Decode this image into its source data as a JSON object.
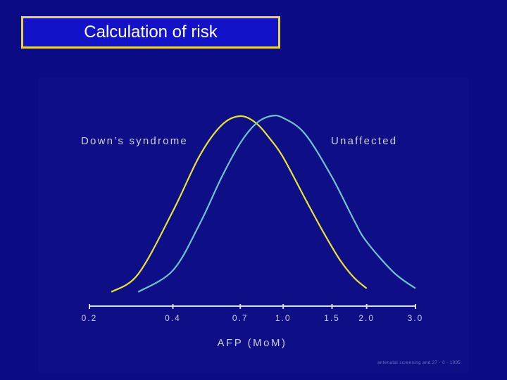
{
  "title": "Calculation of risk",
  "credit": "antenatal screening and 27 - 0 - 1995",
  "chart_data": {
    "type": "line",
    "xlabel": "AFP (MoM)",
    "ylabel": "",
    "x_scale": "log",
    "xlim": [
      0.2,
      3.0
    ],
    "ticks": [
      "0.2",
      "0.4",
      "0.7",
      "1.0",
      "1.5",
      "2.0",
      "3.0"
    ],
    "tick_values": [
      0.2,
      0.4,
      0.7,
      1.0,
      1.5,
      2.0,
      3.0
    ],
    "grid": false,
    "colors": {
      "downs": "#e8e23a",
      "unaffected": "#6fc3cf",
      "axis": "#d6dbea"
    },
    "series": [
      {
        "name": "Down’s syndrome",
        "x": [
          0.24,
          0.3,
          0.4,
          0.5,
          0.6,
          0.7,
          0.8,
          0.9,
          1.0,
          1.2,
          1.4,
          1.6,
          1.8,
          2.0
        ],
        "y": [
          0.02,
          0.12,
          0.47,
          0.78,
          0.95,
          1.0,
          0.96,
          0.87,
          0.77,
          0.54,
          0.35,
          0.2,
          0.1,
          0.04
        ]
      },
      {
        "name": "Unaffected",
        "x": [
          0.3,
          0.4,
          0.5,
          0.6,
          0.7,
          0.8,
          0.9,
          1.0,
          1.2,
          1.5,
          1.8,
          2.0,
          2.5,
          3.0
        ],
        "y": [
          0.02,
          0.14,
          0.4,
          0.66,
          0.85,
          0.96,
          1.0,
          0.99,
          0.9,
          0.66,
          0.42,
          0.3,
          0.13,
          0.04
        ]
      }
    ]
  }
}
